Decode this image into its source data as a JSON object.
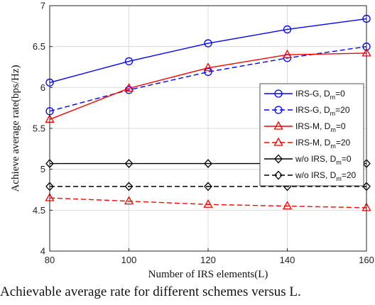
{
  "chart_data": {
    "type": "line",
    "xlabel": "Number of IRS elements(L)",
    "ylabel": "Achieve average rate(bps/Hz)",
    "x": [
      80,
      100,
      120,
      140,
      160
    ],
    "xlim": [
      80,
      160
    ],
    "ylim": [
      4,
      7
    ],
    "xticks": [
      "80",
      "100",
      "120",
      "140",
      "160"
    ],
    "yticks": [
      "4",
      "4.5",
      "5",
      "5.5",
      "6",
      "6.5",
      "7"
    ],
    "grid": true,
    "legend_position": "center-right",
    "series": [
      {
        "name": "IRS-G, D_m=0",
        "label_main": "IRS-G, D",
        "label_sub": "m",
        "label_tail": "=0",
        "color": "#0000ff",
        "dash": "solid",
        "marker": "circle",
        "values": [
          6.06,
          6.32,
          6.54,
          6.71,
          6.84
        ]
      },
      {
        "name": "IRS-G, D_m=20",
        "label_main": "IRS-G, D",
        "label_sub": "m",
        "label_tail": "=20",
        "color": "#0000ff",
        "dash": "dashed",
        "marker": "circle",
        "values": [
          5.71,
          5.97,
          6.19,
          6.36,
          6.5
        ]
      },
      {
        "name": "IRS-M, D_m=0",
        "label_main": "IRS-M, D",
        "label_sub": "m",
        "label_tail": "=0",
        "color": "#ff0000",
        "dash": "solid",
        "marker": "triangle",
        "values": [
          5.61,
          5.99,
          6.24,
          6.4,
          6.42
        ]
      },
      {
        "name": "IRS-M, D_m=20",
        "label_main": "IRS-M, D",
        "label_sub": "m",
        "label_tail": "=20",
        "color": "#ff0000",
        "dash": "dashed",
        "marker": "triangle",
        "values": [
          4.65,
          4.61,
          4.57,
          4.55,
          4.53
        ]
      },
      {
        "name": "w/o IRS, D_m=0",
        "label_main": "w/o IRS, D",
        "label_sub": "m",
        "label_tail": "=0",
        "color": "#000000",
        "dash": "solid",
        "marker": "diamond",
        "values": [
          5.07,
          5.07,
          5.07,
          5.07,
          5.07
        ]
      },
      {
        "name": "w/o IRS, D_m=20",
        "label_main": "w/o IRS, D",
        "label_sub": "m",
        "label_tail": "=20",
        "color": "#000000",
        "dash": "dashed",
        "marker": "diamond",
        "values": [
          4.79,
          4.79,
          4.79,
          4.79,
          4.79
        ]
      }
    ]
  },
  "caption": "Achievable average rate for different schemes versus L."
}
